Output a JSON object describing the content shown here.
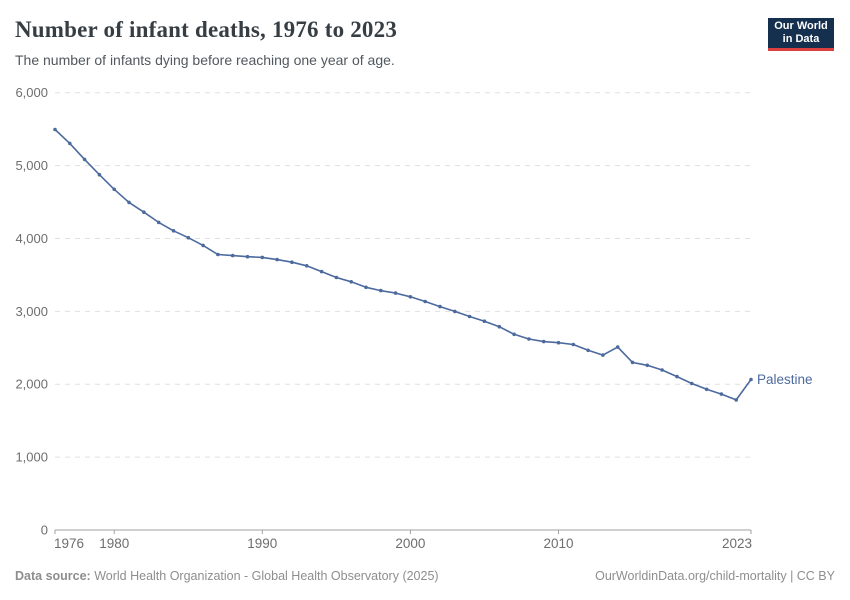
{
  "header": {
    "title": "Number of infant deaths, 1976 to 2023",
    "subtitle": "The number of infants dying before reaching one year of age."
  },
  "logo": {
    "line1": "Our World",
    "line2": "in Data"
  },
  "chart_data": {
    "type": "line",
    "title": "Number of infant deaths, 1976 to 2023",
    "xlabel": "",
    "ylabel": "",
    "x": [
      1976,
      1977,
      1978,
      1979,
      1980,
      1981,
      1982,
      1983,
      1984,
      1985,
      1986,
      1987,
      1988,
      1989,
      1990,
      1991,
      1992,
      1993,
      1994,
      1995,
      1996,
      1997,
      1998,
      1999,
      2000,
      2001,
      2002,
      2003,
      2004,
      2005,
      2006,
      2007,
      2008,
      2009,
      2010,
      2011,
      2012,
      2013,
      2014,
      2015,
      2016,
      2017,
      2018,
      2019,
      2020,
      2021,
      2022,
      2023
    ],
    "series": [
      {
        "name": "Palestine",
        "color": "#4c6a9d",
        "values": [
          5495,
          5305,
          5085,
          4875,
          4675,
          4495,
          4360,
          4220,
          4105,
          4010,
          3905,
          3780,
          3765,
          3750,
          3740,
          3710,
          3675,
          3625,
          3545,
          3465,
          3405,
          3330,
          3285,
          3250,
          3200,
          3135,
          3065,
          3000,
          2930,
          2865,
          2790,
          2685,
          2620,
          2585,
          2570,
          2545,
          2465,
          2400,
          2510,
          2300,
          2260,
          2195,
          2105,
          2010,
          1930,
          1865,
          1785,
          2065
        ]
      }
    ],
    "xlim": [
      1976,
      2023
    ],
    "ylim": [
      0,
      6000
    ],
    "xticks": [
      1976,
      1980,
      1990,
      2000,
      2010,
      2023
    ],
    "yticks": [
      0,
      1000,
      2000,
      3000,
      4000,
      5000,
      6000
    ],
    "grid": true,
    "legend_position": "end-of-line-label"
  },
  "footer": {
    "source_label": "Data source:",
    "source_text": " World Health Organization - Global Health Observatory (2025)",
    "link_text": "OurWorldinData.org/child-mortality | CC BY"
  },
  "colors": {
    "series_line": "#4c6a9d",
    "title_text": "#363e44",
    "subtitle_text": "#51585e",
    "tick_label": "#6e6e6e",
    "gridline": "#e0e0e0",
    "axis_line": "#a2a2a2",
    "footer_text": "#8e8e8e",
    "logo_background": "#15304f",
    "logo_stripe": "#dc3f3f",
    "logo_text": "#ffffff"
  }
}
